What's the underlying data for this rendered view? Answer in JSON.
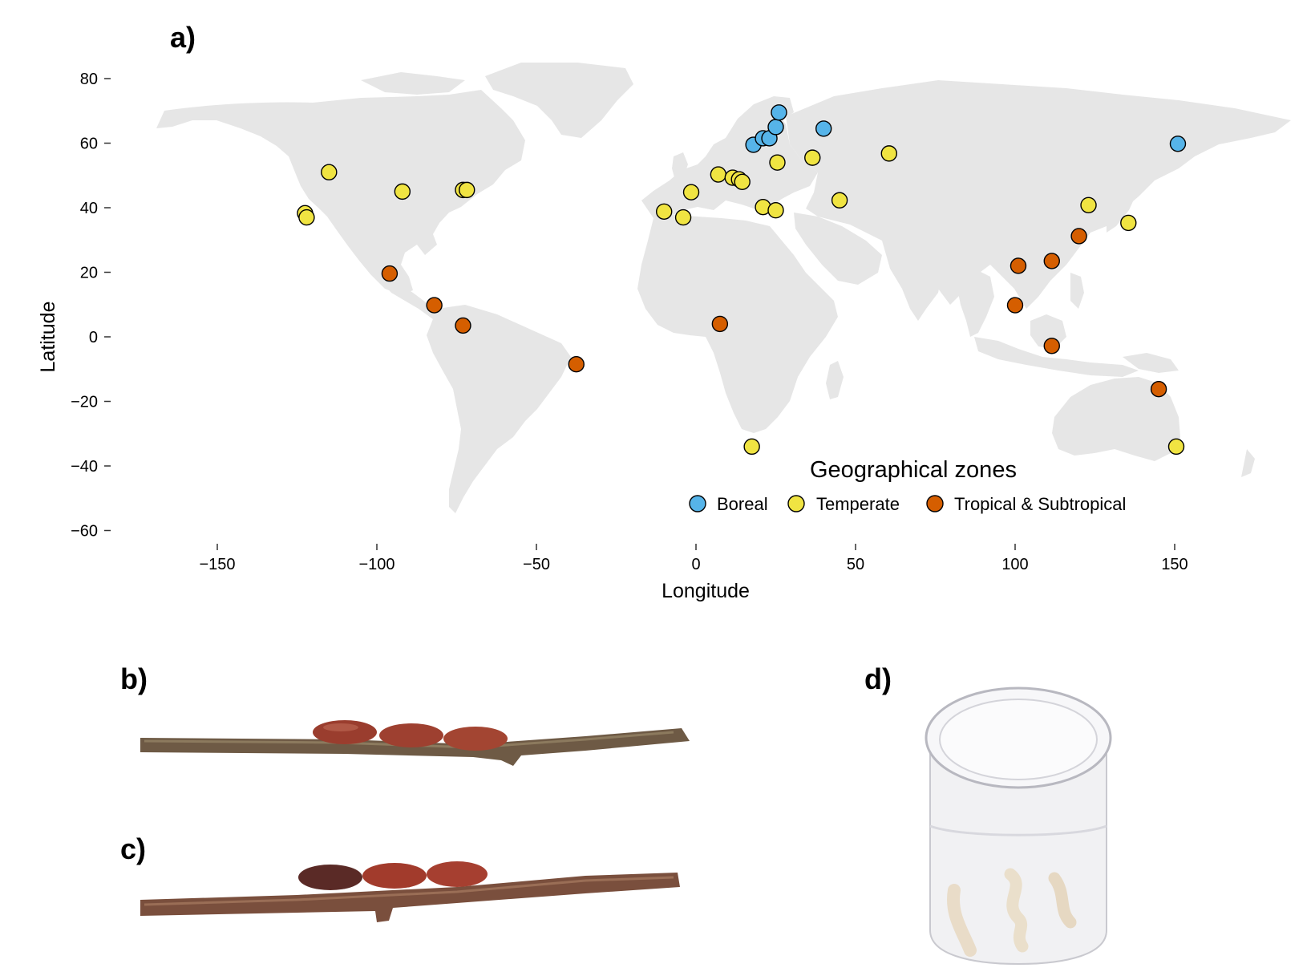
{
  "panels": {
    "a": "a)",
    "b": "b)",
    "c": "c)",
    "d": "d)"
  },
  "chart_data": {
    "type": "scatter",
    "xlabel": "Longitude",
    "ylabel": "Latitude",
    "xlim": [
      -175,
      185
    ],
    "ylim": [
      -65,
      88
    ],
    "xticks": [
      -150,
      -100,
      -50,
      0,
      50,
      100,
      150
    ],
    "xtick_labels": [
      "−150",
      "−100",
      "−50",
      "0",
      "50",
      "100",
      "150"
    ],
    "yticks": [
      80,
      60,
      40,
      20,
      0,
      -20,
      -40,
      -60
    ],
    "ytick_labels": [
      "80",
      "60",
      "40",
      "20",
      "0",
      "−20",
      "−40",
      "−60"
    ],
    "grid": false,
    "background_map": "world landmass, light grey",
    "legend": {
      "title": "Geographical zones",
      "placement": "bottom-right",
      "entries": [
        {
          "name": "Boreal",
          "color": "#56B4E9"
        },
        {
          "name": "Temperate",
          "color": "#F0E442"
        },
        {
          "name": "Tropical & Subtropical",
          "color": "#D55E00"
        }
      ]
    },
    "series": [
      {
        "name": "Boreal",
        "color": "#56B4E9",
        "points": [
          [
            18,
            59.5
          ],
          [
            21,
            61.5
          ],
          [
            23,
            61.5
          ],
          [
            25,
            65
          ],
          [
            26,
            69.5
          ],
          [
            40,
            64.5
          ],
          [
            151,
            59.8
          ]
        ]
      },
      {
        "name": "Temperate",
        "color": "#F0E442",
        "points": [
          [
            -122.5,
            38.3
          ],
          [
            -122,
            37
          ],
          [
            -115,
            51
          ],
          [
            -92,
            45
          ],
          [
            -73,
            45.5
          ],
          [
            -71.8,
            45.5
          ],
          [
            -10,
            38.8
          ],
          [
            -4,
            37
          ],
          [
            -1.5,
            44.8
          ],
          [
            7,
            50.3
          ],
          [
            11.5,
            49.3
          ],
          [
            13.5,
            48.8
          ],
          [
            14.5,
            48
          ],
          [
            21,
            40.2
          ],
          [
            25,
            39.2
          ],
          [
            25.5,
            54
          ],
          [
            36.5,
            55.5
          ],
          [
            45,
            42.3
          ],
          [
            60.5,
            56.8
          ],
          [
            17.5,
            -34
          ],
          [
            123,
            40.8
          ],
          [
            135.5,
            35.3
          ],
          [
            150.5,
            -34
          ]
        ]
      },
      {
        "name": "Tropical & Subtropical",
        "color": "#D55E00",
        "points": [
          [
            -96,
            19.6
          ],
          [
            -82,
            9.8
          ],
          [
            -73,
            3.5
          ],
          [
            -37.5,
            -8.5
          ],
          [
            7.5,
            4
          ],
          [
            100,
            9.8
          ],
          [
            101,
            22
          ],
          [
            111.5,
            23.5
          ],
          [
            120,
            31.2
          ],
          [
            111.5,
            -2.8
          ],
          [
            145,
            -16.2
          ]
        ]
      }
    ]
  },
  "photos": {
    "b": "branch with three reddish-brown puparia",
    "c": "branch with three reddish puparia, one darker",
    "d": "clear plastic vial containing pale larvae"
  }
}
